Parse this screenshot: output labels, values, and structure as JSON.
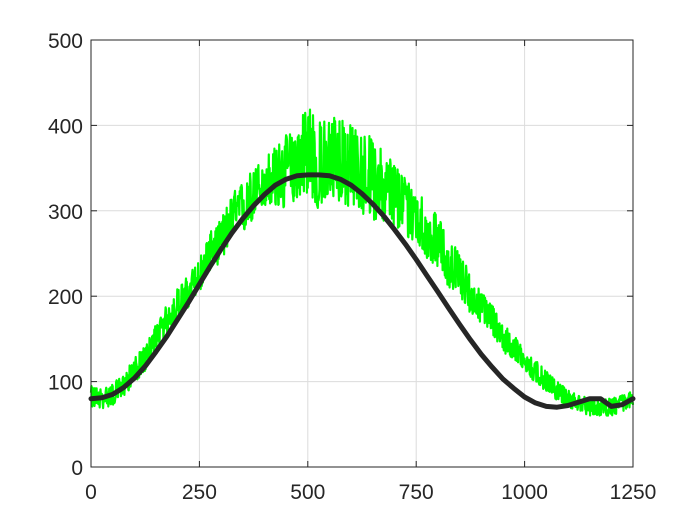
{
  "chart_data": {
    "type": "line",
    "title": "",
    "xlabel": "",
    "ylabel": "",
    "xlim": [
      0,
      1250
    ],
    "ylim": [
      0,
      500
    ],
    "x_ticks": [
      0,
      250,
      500,
      750,
      1000,
      1250
    ],
    "y_ticks": [
      0,
      100,
      200,
      300,
      400,
      500
    ],
    "x_tick_labels": [
      "0",
      "250",
      "500",
      "750",
      "1000",
      "1250"
    ],
    "y_tick_labels": [
      "0",
      "100",
      "200",
      "300",
      "400",
      "500"
    ],
    "grid": true,
    "legend": "none",
    "series": [
      {
        "role": "noisy",
        "color": "#00ff00",
        "x": [
          0,
          25,
          50,
          75,
          100,
          125,
          150,
          175,
          200,
          225,
          250,
          275,
          300,
          325,
          350,
          375,
          400,
          425,
          450,
          475,
          500,
          525,
          550,
          575,
          600,
          625,
          650,
          675,
          700,
          725,
          750,
          775,
          800,
          825,
          850,
          875,
          900,
          925,
          950,
          975,
          1000,
          1025,
          1050,
          1075,
          1100,
          1125,
          1150,
          1175,
          1200,
          1225,
          1250
        ],
        "y": [
          82,
          80,
          84,
          95,
          112,
          125,
          150,
          168,
          188,
          200,
          222,
          250,
          262,
          290,
          300,
          318,
          330,
          335,
          345,
          352,
          360,
          330,
          348,
          350,
          345,
          340,
          335,
          325,
          318,
          300,
          298,
          270,
          262,
          235,
          225,
          200,
          185,
          172,
          150,
          140,
          122,
          110,
          100,
          88,
          80,
          75,
          70,
          70,
          70,
          74,
          80
        ],
        "y_min": [
          70,
          68,
          72,
          82,
          98,
          112,
          136,
          150,
          172,
          186,
          205,
          230,
          240,
          265,
          272,
          290,
          305,
          300,
          300,
          315,
          320,
          300,
          315,
          310,
          300,
          295,
          290,
          285,
          280,
          268,
          262,
          242,
          235,
          210,
          200,
          180,
          168,
          155,
          135,
          125,
          110,
          98,
          88,
          78,
          70,
          65,
          60,
          60,
          60,
          64,
          70
        ],
        "y_max": [
          95,
          92,
          98,
          108,
          128,
          142,
          168,
          190,
          210,
          225,
          245,
          275,
          290,
          320,
          335,
          350,
          365,
          375,
          390,
          395,
          440,
          405,
          410,
          420,
          400,
          395,
          385,
          370,
          360,
          340,
          335,
          305,
          295,
          265,
          255,
          225,
          205,
          192,
          168,
          155,
          138,
          125,
          112,
          100,
          90,
          85,
          80,
          80,
          80,
          85,
          95
        ]
      },
      {
        "role": "fit",
        "color": "#262626",
        "x": [
          0,
          25,
          50,
          75,
          100,
          125,
          150,
          175,
          200,
          225,
          250,
          275,
          300,
          325,
          350,
          375,
          400,
          425,
          450,
          475,
          500,
          525,
          550,
          575,
          600,
          625,
          650,
          675,
          700,
          725,
          750,
          775,
          800,
          825,
          850,
          875,
          900,
          925,
          950,
          975,
          1000,
          1025,
          1050,
          1075,
          1100,
          1125,
          1150,
          1175,
          1200,
          1225,
          1250
        ],
        "y": [
          80,
          81,
          85,
          93,
          104,
          118,
          135,
          153,
          173,
          193,
          214,
          235,
          255,
          274,
          291,
          306,
          319,
          330,
          337,
          341,
          342,
          342,
          341,
          337,
          330,
          320,
          308,
          294,
          278,
          261,
          243,
          224,
          205,
          186,
          167,
          149,
          132,
          117,
          103,
          92,
          82,
          75,
          71,
          70,
          72,
          76,
          80,
          80,
          71,
          73,
          80
        ]
      }
    ]
  }
}
